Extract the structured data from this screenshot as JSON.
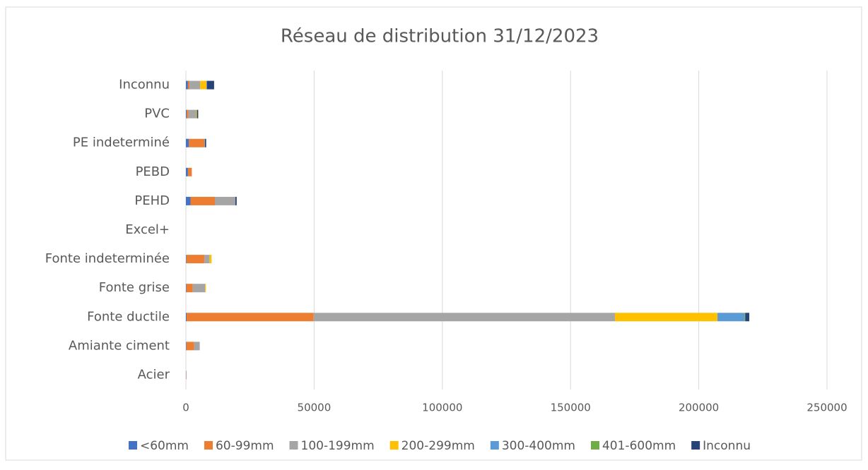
{
  "chart_data": {
    "type": "stacked-barh",
    "title": "Réseau de distribution 31/12/2023",
    "categories": [
      "Acier",
      "Amiante ciment",
      "Fonte ductile",
      "Fonte grise",
      "Fonte indeterminée",
      "Excel+",
      "PEHD",
      "PEBD",
      "PE indeterminé",
      "PVC",
      "Inconnu"
    ],
    "series": [
      {
        "name": "<60mm",
        "color": "#4472c4",
        "values": [
          100,
          200,
          300,
          200,
          200,
          0,
          1800,
          800,
          1200,
          300,
          800
        ]
      },
      {
        "name": "60-99mm",
        "color": "#ed7d31",
        "values": [
          100,
          3000,
          49500,
          2500,
          7000,
          0,
          9500,
          1500,
          6000,
          700,
          600
        ]
      },
      {
        "name": "100-199mm",
        "color": "#a5a5a5",
        "values": [
          0,
          2200,
          117500,
          4800,
          2000,
          0,
          8000,
          0,
          200,
          3000,
          4200
        ]
      },
      {
        "name": "200-299mm",
        "color": "#ffc000",
        "values": [
          0,
          0,
          40000,
          300,
          800,
          0,
          0,
          0,
          0,
          300,
          2400
        ]
      },
      {
        "name": "300-400mm",
        "color": "#5b9bd5",
        "values": [
          0,
          0,
          10500,
          0,
          0,
          0,
          0,
          0,
          0,
          0,
          200
        ]
      },
      {
        "name": "401-600mm",
        "color": "#70ad47",
        "values": [
          0,
          0,
          300,
          0,
          0,
          0,
          0,
          0,
          0,
          0,
          0
        ]
      },
      {
        "name": "Inconnu",
        "color": "#264478",
        "values": [
          0,
          0,
          1600,
          0,
          0,
          0,
          500,
          0,
          500,
          500,
          2800
        ]
      }
    ],
    "xlim": [
      0,
      250000
    ],
    "xticks": [
      0,
      50000,
      100000,
      150000,
      200000,
      250000
    ],
    "grid": true,
    "legend": "bottom"
  }
}
